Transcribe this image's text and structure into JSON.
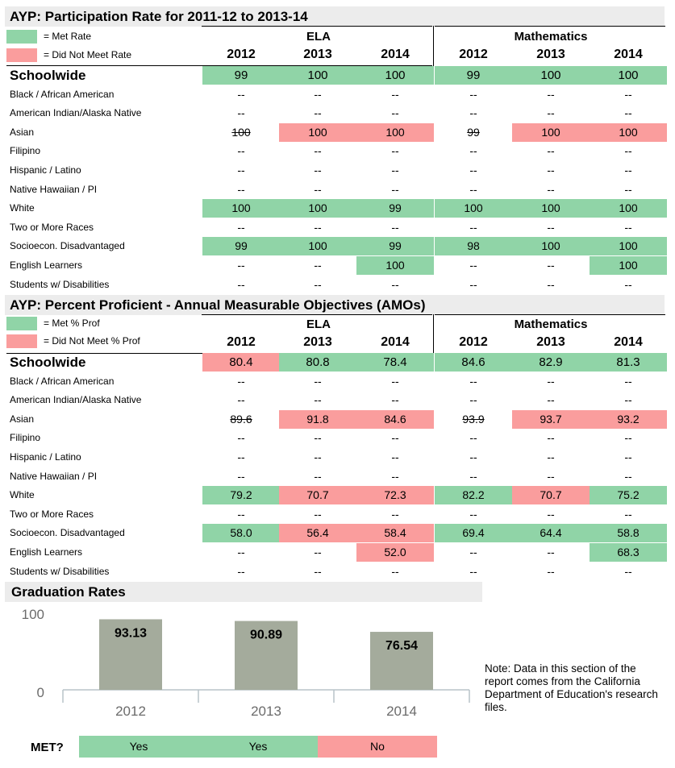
{
  "colors": {
    "met": "#90d4a7",
    "not_met": "#fa9d9d",
    "bar": "#a4ab9c",
    "axis": "#b8c3c9"
  },
  "participation": {
    "title": "AYP: Participation Rate for 2011-12 to 2013-14",
    "legend_met": "= Met Rate",
    "legend_not": "= Did Not Meet Rate",
    "group_ela": "ELA",
    "group_math": "Mathematics",
    "years": [
      "2012",
      "2013",
      "2014",
      "2012",
      "2013",
      "2014"
    ],
    "rows": [
      {
        "label": "Schoolwide",
        "values": [
          "99",
          "100",
          "100",
          "99",
          "100",
          "100"
        ],
        "status": [
          "m",
          "m",
          "m",
          "m",
          "m",
          "m"
        ]
      },
      {
        "label": "Black / African American",
        "values": [
          "--",
          "--",
          "--",
          "--",
          "--",
          "--"
        ],
        "status": [
          "",
          "",
          "",
          "",
          "",
          ""
        ]
      },
      {
        "label": "American Indian/Alaska Native",
        "values": [
          "--",
          "--",
          "--",
          "--",
          "--",
          "--"
        ],
        "status": [
          "",
          "",
          "",
          "",
          "",
          ""
        ]
      },
      {
        "label": "Asian",
        "values": [
          "100",
          "100",
          "100",
          "99",
          "100",
          "100"
        ],
        "status": [
          "s",
          "n",
          "n",
          "s",
          "n",
          "n"
        ]
      },
      {
        "label": "Filipino",
        "values": [
          "--",
          "--",
          "--",
          "--",
          "--",
          "--"
        ],
        "status": [
          "",
          "",
          "",
          "",
          "",
          ""
        ]
      },
      {
        "label": "Hispanic / Latino",
        "values": [
          "--",
          "--",
          "--",
          "--",
          "--",
          "--"
        ],
        "status": [
          "",
          "",
          "",
          "",
          "",
          ""
        ]
      },
      {
        "label": "Native Hawaiian / PI",
        "values": [
          "--",
          "--",
          "--",
          "--",
          "--",
          "--"
        ],
        "status": [
          "",
          "",
          "",
          "",
          "",
          ""
        ]
      },
      {
        "label": "White",
        "values": [
          "100",
          "100",
          "99",
          "100",
          "100",
          "100"
        ],
        "status": [
          "m",
          "m",
          "m",
          "m",
          "m",
          "m"
        ]
      },
      {
        "label": "Two or More Races",
        "values": [
          "--",
          "--",
          "--",
          "--",
          "--",
          "--"
        ],
        "status": [
          "",
          "",
          "",
          "",
          "",
          ""
        ]
      },
      {
        "label": "Socioecon. Disadvantaged",
        "values": [
          "99",
          "100",
          "99",
          "98",
          "100",
          "100"
        ],
        "status": [
          "m",
          "m",
          "m",
          "m",
          "m",
          "m"
        ]
      },
      {
        "label": "English Learners",
        "values": [
          "--",
          "--",
          "100",
          "--",
          "--",
          "100"
        ],
        "status": [
          "",
          "",
          "m",
          "",
          "",
          "m"
        ]
      },
      {
        "label": "Students w/ Disabilities",
        "values": [
          "--",
          "--",
          "--",
          "--",
          "--",
          "--"
        ],
        "status": [
          "",
          "",
          "",
          "",
          "",
          ""
        ]
      }
    ]
  },
  "proficient": {
    "title": "AYP: Percent Proficient - Annual Measurable Objectives (AMOs)",
    "legend_met": "= Met % Prof",
    "legend_not": "= Did Not Meet % Prof",
    "group_ela": "ELA",
    "group_math": "Mathematics",
    "years": [
      "2012",
      "2013",
      "2014",
      "2012",
      "2013",
      "2014"
    ],
    "rows": [
      {
        "label": "Schoolwide",
        "values": [
          "80.4",
          "80.8",
          "78.4",
          "84.6",
          "82.9",
          "81.3"
        ],
        "status": [
          "n",
          "m",
          "m",
          "m",
          "m",
          "m"
        ]
      },
      {
        "label": "Black / African American",
        "values": [
          "--",
          "--",
          "--",
          "--",
          "--",
          "--"
        ],
        "status": [
          "",
          "",
          "",
          "",
          "",
          ""
        ]
      },
      {
        "label": "American Indian/Alaska Native",
        "values": [
          "--",
          "--",
          "--",
          "--",
          "--",
          "--"
        ],
        "status": [
          "",
          "",
          "",
          "",
          "",
          ""
        ]
      },
      {
        "label": "Asian",
        "values": [
          "89.6",
          "91.8",
          "84.6",
          "93.9",
          "93.7",
          "93.2"
        ],
        "status": [
          "s",
          "n",
          "n",
          "s",
          "n",
          "n"
        ]
      },
      {
        "label": "Filipino",
        "values": [
          "--",
          "--",
          "--",
          "--",
          "--",
          "--"
        ],
        "status": [
          "",
          "",
          "",
          "",
          "",
          ""
        ]
      },
      {
        "label": "Hispanic / Latino",
        "values": [
          "--",
          "--",
          "--",
          "--",
          "--",
          "--"
        ],
        "status": [
          "",
          "",
          "",
          "",
          "",
          ""
        ]
      },
      {
        "label": "Native Hawaiian / PI",
        "values": [
          "--",
          "--",
          "--",
          "--",
          "--",
          "--"
        ],
        "status": [
          "",
          "",
          "",
          "",
          "",
          ""
        ]
      },
      {
        "label": "White",
        "values": [
          "79.2",
          "70.7",
          "72.3",
          "82.2",
          "70.7",
          "75.2"
        ],
        "status": [
          "m",
          "n",
          "n",
          "m",
          "n",
          "m"
        ]
      },
      {
        "label": "Two or More Races",
        "values": [
          "--",
          "--",
          "--",
          "--",
          "--",
          "--"
        ],
        "status": [
          "",
          "",
          "",
          "",
          "",
          ""
        ]
      },
      {
        "label": "Socioecon. Disadvantaged",
        "values": [
          "58.0",
          "56.4",
          "58.4",
          "69.4",
          "64.4",
          "58.8"
        ],
        "status": [
          "m",
          "n",
          "n",
          "m",
          "m",
          "m"
        ]
      },
      {
        "label": "English Learners",
        "values": [
          "--",
          "--",
          "52.0",
          "--",
          "--",
          "68.3"
        ],
        "status": [
          "",
          "",
          "n",
          "",
          "",
          "m"
        ]
      },
      {
        "label": "Students w/ Disabilities",
        "values": [
          "--",
          "--",
          "--",
          "--",
          "--",
          "--"
        ],
        "status": [
          "",
          "",
          "",
          "",
          "",
          ""
        ]
      }
    ]
  },
  "graduation": {
    "title": "Graduation Rates",
    "note": "Note: Data in this section of the report comes from the California Department of Education's research files.",
    "met_label": "MET?",
    "met_values": [
      "Yes",
      "Yes",
      "No"
    ],
    "met_status": [
      "m",
      "m",
      "n"
    ]
  },
  "chart_data": {
    "type": "bar",
    "title": "Graduation Rates",
    "categories": [
      "2012",
      "2013",
      "2014"
    ],
    "values": [
      93.13,
      90.89,
      76.54
    ],
    "value_labels": [
      "93.13",
      "90.89",
      "76.54"
    ],
    "ylim": [
      0,
      100
    ],
    "yticks": [
      "0",
      "100"
    ],
    "xlabel": "",
    "ylabel": ""
  }
}
